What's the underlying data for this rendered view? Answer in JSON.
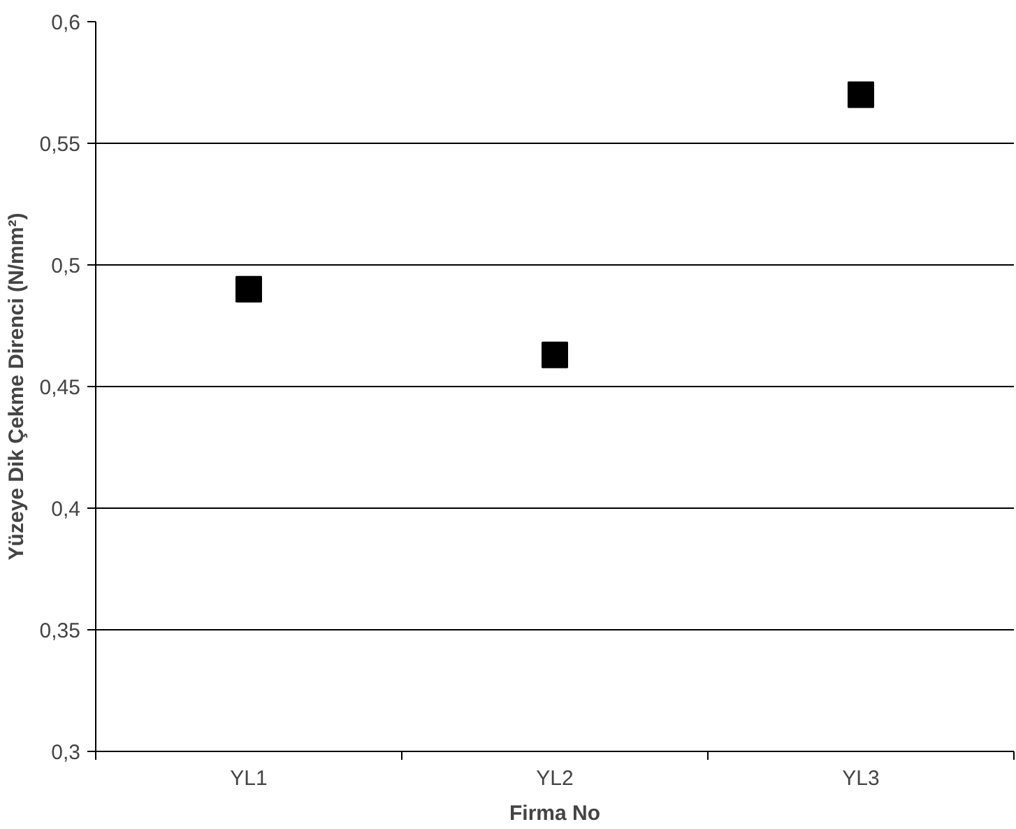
{
  "chart_data": {
    "type": "scatter",
    "xlabel": "Firma No",
    "ylabel": "Yüzeye Dik Çekme Direnci (N/mm²)",
    "categories": [
      "YL1",
      "YL2",
      "YL3"
    ],
    "series": [
      {
        "color": "#000000",
        "values": [
          0.49,
          0.463,
          0.57
        ]
      }
    ],
    "ylim": [
      0.3,
      0.6
    ],
    "yticks": [
      {
        "value": 0.3,
        "label": "0,3"
      },
      {
        "value": 0.35,
        "label": "0,35"
      },
      {
        "value": 0.4,
        "label": "0,4"
      },
      {
        "value": 0.45,
        "label": "0,45"
      },
      {
        "value": 0.5,
        "label": "0,5"
      },
      {
        "value": 0.55,
        "label": "0,55"
      },
      {
        "value": 0.6,
        "label": "0,6"
      }
    ],
    "grid": "y",
    "marker": "square"
  }
}
